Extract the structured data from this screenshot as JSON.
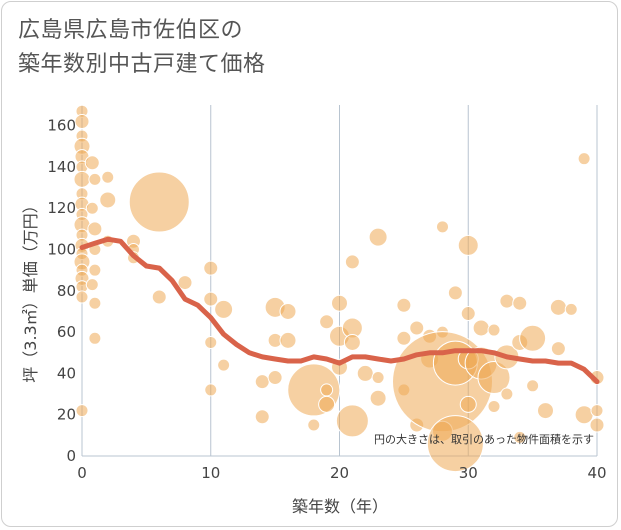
{
  "title": {
    "line1": "広島県広島市佐伯区の",
    "line2": "築年数別中古戸建て価格"
  },
  "colors": {
    "bubble": "#eeaa55",
    "trend": "#d9634a",
    "grid": "#b8c4d0"
  },
  "chart_data": {
    "type": "scatter",
    "title": "広島県広島市佐伯区の 築年数別中古戸建て価格",
    "xlabel": "築年数（年）",
    "ylabel": "坪（3.3㎡）単価（万円）",
    "xlim": [
      0,
      40
    ],
    "ylim": [
      0,
      170
    ],
    "x_ticks": [
      "0",
      "10",
      "20",
      "30",
      "40"
    ],
    "y_ticks": [
      "0",
      "20",
      "40",
      "60",
      "80",
      "100",
      "120",
      "140",
      "160"
    ],
    "note": "円の大きさは、取引のあった物件面積を示す",
    "points": [
      {
        "x": 0,
        "y": 167,
        "s": 6
      },
      {
        "x": 0,
        "y": 162,
        "s": 7
      },
      {
        "x": 0,
        "y": 155,
        "s": 6
      },
      {
        "x": 0,
        "y": 150,
        "s": 8
      },
      {
        "x": 0,
        "y": 145,
        "s": 7
      },
      {
        "x": 0,
        "y": 140,
        "s": 6
      },
      {
        "x": 0,
        "y": 134,
        "s": 8
      },
      {
        "x": 0,
        "y": 127,
        "s": 6
      },
      {
        "x": 0,
        "y": 122,
        "s": 7
      },
      {
        "x": 0,
        "y": 117,
        "s": 6
      },
      {
        "x": 0,
        "y": 112,
        "s": 8
      },
      {
        "x": 0,
        "y": 107,
        "s": 6
      },
      {
        "x": 0,
        "y": 102,
        "s": 7
      },
      {
        "x": 0,
        "y": 98,
        "s": 6
      },
      {
        "x": 0,
        "y": 94,
        "s": 8
      },
      {
        "x": 0,
        "y": 90,
        "s": 6
      },
      {
        "x": 0,
        "y": 86,
        "s": 7
      },
      {
        "x": 0,
        "y": 82,
        "s": 6
      },
      {
        "x": 0,
        "y": 77,
        "s": 6
      },
      {
        "x": 0,
        "y": 22,
        "s": 6
      },
      {
        "x": 0.8,
        "y": 142,
        "s": 7
      },
      {
        "x": 1,
        "y": 134,
        "s": 6
      },
      {
        "x": 0.8,
        "y": 120,
        "s": 6
      },
      {
        "x": 1,
        "y": 110,
        "s": 7
      },
      {
        "x": 1,
        "y": 100,
        "s": 6
      },
      {
        "x": 1,
        "y": 90,
        "s": 6
      },
      {
        "x": 0.8,
        "y": 83,
        "s": 6
      },
      {
        "x": 1,
        "y": 74,
        "s": 6
      },
      {
        "x": 1,
        "y": 57,
        "s": 6
      },
      {
        "x": 2,
        "y": 135,
        "s": 6
      },
      {
        "x": 2,
        "y": 124,
        "s": 8
      },
      {
        "x": 2,
        "y": 104,
        "s": 6
      },
      {
        "x": 4,
        "y": 104,
        "s": 7
      },
      {
        "x": 4,
        "y": 100,
        "s": 6
      },
      {
        "x": 4,
        "y": 96,
        "s": 6
      },
      {
        "x": 6,
        "y": 123,
        "s": 30
      },
      {
        "x": 6,
        "y": 77,
        "s": 7
      },
      {
        "x": 8,
        "y": 84,
        "s": 7
      },
      {
        "x": 10,
        "y": 91,
        "s": 7
      },
      {
        "x": 10,
        "y": 76,
        "s": 7
      },
      {
        "x": 10,
        "y": 55,
        "s": 6
      },
      {
        "x": 10,
        "y": 32,
        "s": 6
      },
      {
        "x": 11,
        "y": 71,
        "s": 9
      },
      {
        "x": 11,
        "y": 44,
        "s": 6
      },
      {
        "x": 14,
        "y": 36,
        "s": 7
      },
      {
        "x": 14,
        "y": 19,
        "s": 7
      },
      {
        "x": 15,
        "y": 72,
        "s": 10
      },
      {
        "x": 15,
        "y": 56,
        "s": 7
      },
      {
        "x": 15,
        "y": 38,
        "s": 7
      },
      {
        "x": 16,
        "y": 70,
        "s": 8
      },
      {
        "x": 16,
        "y": 56,
        "s": 8
      },
      {
        "x": 18,
        "y": 32,
        "s": 26
      },
      {
        "x": 18,
        "y": 15,
        "s": 6
      },
      {
        "x": 19,
        "y": 65,
        "s": 7
      },
      {
        "x": 19,
        "y": 32,
        "s": 6
      },
      {
        "x": 19,
        "y": 25,
        "s": 8
      },
      {
        "x": 20,
        "y": 74,
        "s": 8
      },
      {
        "x": 20,
        "y": 58,
        "s": 10
      },
      {
        "x": 20,
        "y": 43,
        "s": 8
      },
      {
        "x": 21,
        "y": 94,
        "s": 7
      },
      {
        "x": 21,
        "y": 62,
        "s": 10
      },
      {
        "x": 21,
        "y": 55,
        "s": 8
      },
      {
        "x": 21,
        "y": 17,
        "s": 16
      },
      {
        "x": 22,
        "y": 40,
        "s": 8
      },
      {
        "x": 23,
        "y": 106,
        "s": 9
      },
      {
        "x": 23,
        "y": 38,
        "s": 6
      },
      {
        "x": 23,
        "y": 28,
        "s": 8
      },
      {
        "x": 25,
        "y": 73,
        "s": 7
      },
      {
        "x": 25,
        "y": 57,
        "s": 7
      },
      {
        "x": 25,
        "y": 32,
        "s": 6
      },
      {
        "x": 26,
        "y": 62,
        "s": 7
      },
      {
        "x": 26,
        "y": 15,
        "s": 7
      },
      {
        "x": 27,
        "y": 58,
        "s": 7
      },
      {
        "x": 27,
        "y": 47,
        "s": 9
      },
      {
        "x": 28,
        "y": 111,
        "s": 6
      },
      {
        "x": 28,
        "y": 60,
        "s": 6
      },
      {
        "x": 28,
        "y": 36,
        "s": 50
      },
      {
        "x": 28,
        "y": 12,
        "s": 10
      },
      {
        "x": 29,
        "y": 79,
        "s": 7
      },
      {
        "x": 29,
        "y": 45,
        "s": 22
      },
      {
        "x": 29,
        "y": 6,
        "s": 28
      },
      {
        "x": 30,
        "y": 102,
        "s": 10
      },
      {
        "x": 30,
        "y": 69,
        "s": 7
      },
      {
        "x": 30,
        "y": 47,
        "s": 10
      },
      {
        "x": 30,
        "y": 25,
        "s": 8
      },
      {
        "x": 31,
        "y": 62,
        "s": 8
      },
      {
        "x": 31,
        "y": 45,
        "s": 16
      },
      {
        "x": 32,
        "y": 61,
        "s": 6
      },
      {
        "x": 32,
        "y": 38,
        "s": 16
      },
      {
        "x": 32,
        "y": 24,
        "s": 6
      },
      {
        "x": 33,
        "y": 75,
        "s": 7
      },
      {
        "x": 33,
        "y": 48,
        "s": 12
      },
      {
        "x": 33,
        "y": 30,
        "s": 6
      },
      {
        "x": 34,
        "y": 74,
        "s": 7
      },
      {
        "x": 34,
        "y": 55,
        "s": 8
      },
      {
        "x": 34,
        "y": 9,
        "s": 6
      },
      {
        "x": 35,
        "y": 57,
        "s": 13
      },
      {
        "x": 35,
        "y": 34,
        "s": 6
      },
      {
        "x": 36,
        "y": 22,
        "s": 8
      },
      {
        "x": 37,
        "y": 72,
        "s": 8
      },
      {
        "x": 37,
        "y": 52,
        "s": 7
      },
      {
        "x": 38,
        "y": 71,
        "s": 6
      },
      {
        "x": 39,
        "y": 144,
        "s": 6
      },
      {
        "x": 39,
        "y": 20,
        "s": 9
      },
      {
        "x": 40,
        "y": 38,
        "s": 7
      },
      {
        "x": 40,
        "y": 22,
        "s": 6
      },
      {
        "x": 40,
        "y": 15,
        "s": 7
      }
    ],
    "trend": {
      "x": [
        0,
        1,
        2,
        3,
        4,
        5,
        6,
        7,
        8,
        9,
        10,
        11,
        12,
        13,
        14,
        15,
        16,
        17,
        18,
        19,
        20,
        21,
        22,
        23,
        24,
        25,
        26,
        27,
        28,
        29,
        30,
        31,
        32,
        33,
        34,
        35,
        36,
        37,
        38,
        39,
        40
      ],
      "y": [
        101,
        103,
        105,
        104,
        97,
        92,
        91,
        85,
        76,
        73,
        67,
        59,
        54,
        50,
        48,
        47,
        46,
        46,
        48,
        47,
        45,
        48,
        48,
        47,
        46,
        47,
        49,
        50,
        50,
        51,
        51,
        51,
        50,
        48,
        47,
        46,
        46,
        45,
        45,
        42,
        36
      ]
    }
  }
}
